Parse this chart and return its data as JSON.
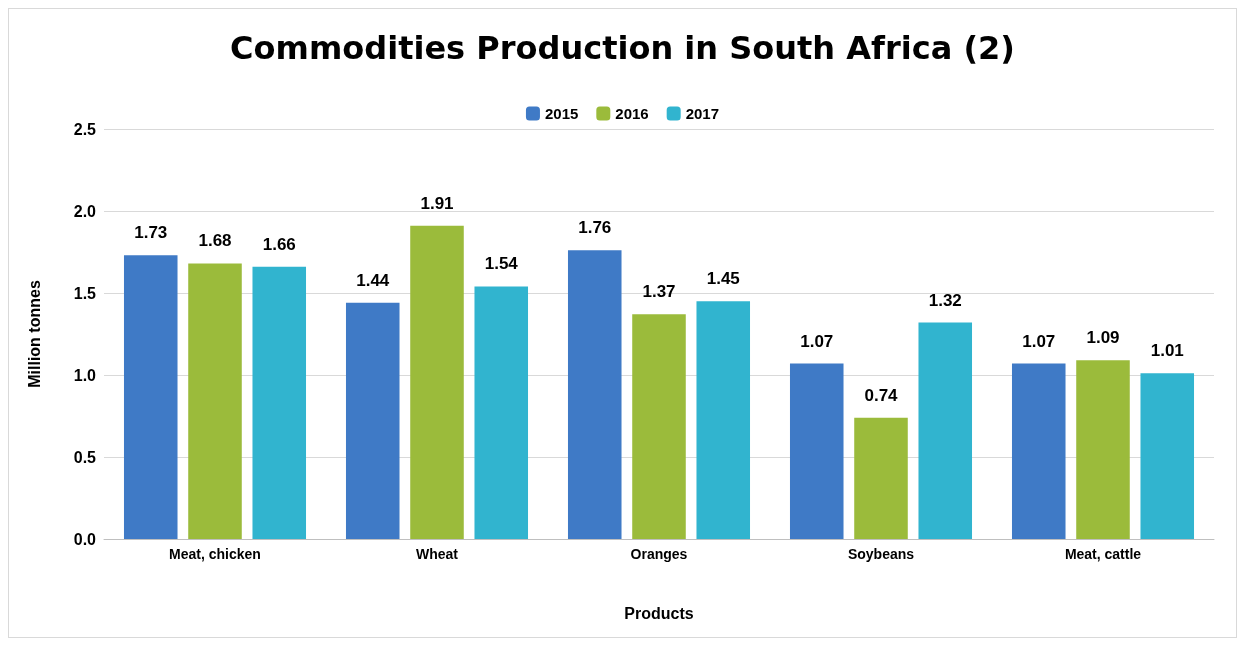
{
  "chart_data": {
    "type": "bar",
    "title": "Commodities Production in South Africa (2)",
    "xlabel": "Products",
    "ylabel": "Million tonnes",
    "categories": [
      "Meat, chicken",
      "Wheat",
      "Oranges",
      "Soybeans",
      "Meat, cattle"
    ],
    "series": [
      {
        "name": "2015",
        "color": "#3f7ac6",
        "values": [
          1.73,
          1.44,
          1.76,
          1.07,
          1.07
        ]
      },
      {
        "name": "2016",
        "color": "#9bbb3b",
        "values": [
          1.68,
          1.91,
          1.37,
          0.74,
          1.09
        ]
      },
      {
        "name": "2017",
        "color": "#31b4cf",
        "values": [
          1.66,
          1.54,
          1.45,
          1.32,
          1.01
        ]
      }
    ],
    "ylim": [
      0,
      2.5
    ],
    "yticks": [
      {
        "value": 0,
        "label": "0.0"
      },
      0.5,
      {
        "value": 1,
        "label": "1.0"
      },
      1.5,
      {
        "value": 2,
        "label": "2.0"
      },
      2.5
    ],
    "grid": "y",
    "legend": "top",
    "data_labels": true
  }
}
